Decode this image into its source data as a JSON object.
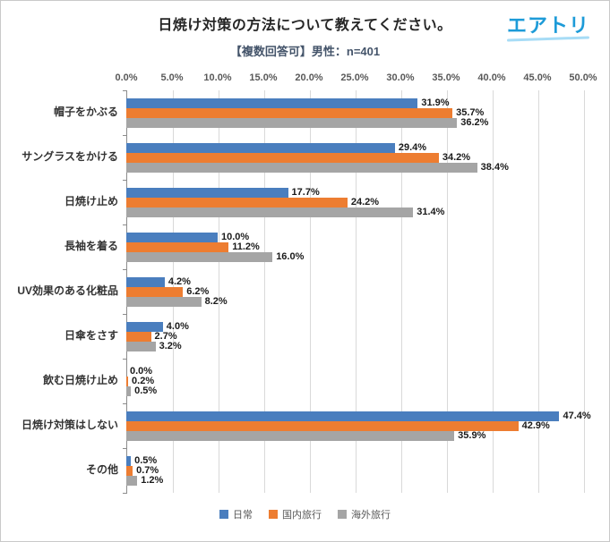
{
  "header": {
    "title": "日焼け対策の方法について教えてください。",
    "subtitle": "【複数回答可】男性：n=401",
    "logo_text": "エアトリ"
  },
  "colors": {
    "series_blue": "#4a7ebe",
    "series_orange": "#ed7d31",
    "series_gray": "#a5a5a5",
    "logo_blue": "#1d9bd8"
  },
  "chart_data": {
    "type": "bar",
    "orientation": "horizontal",
    "title": "日焼け対策の方法について教えてください。",
    "subtitle": "【複数回答可】男性：n=401",
    "categories": [
      "帽子をかぶる",
      "サングラスをかける",
      "日焼け止め",
      "長袖を着る",
      "UV効果のある化粧品",
      "日傘をさす",
      "飲む日焼け止め",
      "日焼け対策はしない",
      "その他"
    ],
    "series": [
      {
        "name": "日常",
        "color": "#4a7ebe",
        "values": [
          31.9,
          29.4,
          17.7,
          10.0,
          4.2,
          4.0,
          0.0,
          47.4,
          0.5
        ]
      },
      {
        "name": "国内旅行",
        "color": "#ed7d31",
        "values": [
          35.7,
          34.2,
          24.2,
          11.2,
          6.2,
          2.7,
          0.2,
          42.9,
          0.7
        ]
      },
      {
        "name": "海外旅行",
        "color": "#a5a5a5",
        "values": [
          36.2,
          38.4,
          31.4,
          16.0,
          8.2,
          3.2,
          0.5,
          35.9,
          1.2
        ]
      }
    ],
    "xlim": [
      0,
      50
    ],
    "x_ticks": [
      "0.0%",
      "5.0%",
      "10.0%",
      "15.0%",
      "20.0%",
      "25.0%",
      "30.0%",
      "35.0%",
      "40.0%",
      "45.0%",
      "50.0%"
    ],
    "value_suffix": "%",
    "grid": true,
    "legend_position": "bottom"
  }
}
